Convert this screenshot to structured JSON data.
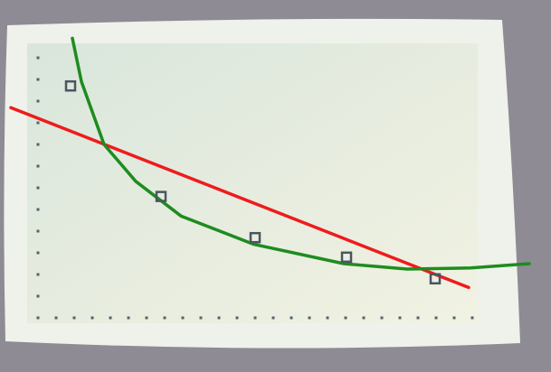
{
  "chart_data": {
    "type": "scatter",
    "x": [
      1.8,
      6.8,
      12.0,
      17.05,
      21.95
    ],
    "y": [
      10.7,
      5.6,
      3.7,
      2.8,
      1.8
    ],
    "color": "#4a5560",
    "lines": [
      {
        "color": "#ee1c1c",
        "x": [
          -1.5,
          23.8
        ],
        "y": [
          9.7,
          1.4
        ]
      },
      {
        "color": "#1e8c1e",
        "x": [
          1.9,
          2.4,
          3.65,
          5.4,
          7.9,
          11.9,
          16.9,
          20.4,
          23.9,
          27.15
        ],
        "y": [
          12.9,
          10.9,
          8.0,
          6.3,
          4.7,
          3.4,
          2.5,
          2.25,
          2.3,
          2.5
        ]
      }
    ],
    "xlim": [
      -2,
      28
    ],
    "ylim": [
      0,
      14
    ],
    "xticks": [
      0,
      1,
      2,
      3,
      4,
      5,
      6,
      7,
      8,
      9,
      10,
      11,
      12,
      13,
      14,
      15,
      16,
      17,
      18,
      19,
      20,
      21,
      22,
      23,
      24
    ],
    "yticks": [
      0,
      1,
      2,
      3,
      4,
      5,
      6,
      7,
      8,
      9,
      10,
      11,
      12
    ]
  }
}
